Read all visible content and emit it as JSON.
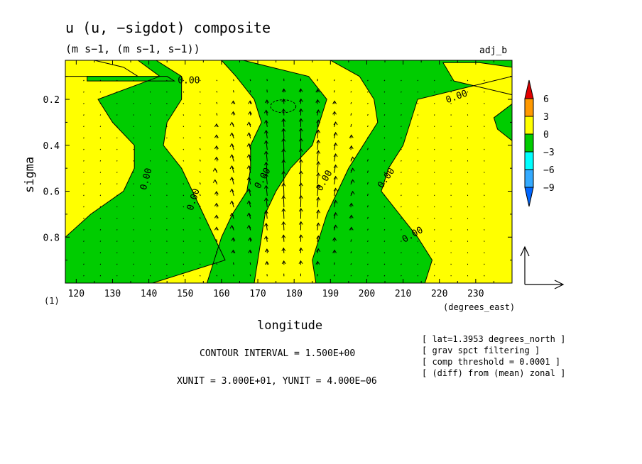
{
  "header": {
    "title": "u (u, −sigdot) composite",
    "units": "(m s−1, (m s−1, s−1))",
    "tag": "adj_b"
  },
  "footer": {
    "contour_interval": "CONTOUR INTERVAL = 1.500E+00",
    "vector_units": "XUNIT = 3.000E+01, YUNIT = 4.000E−06",
    "notes": [
      "[ lat=1.3953 degrees_north ]",
      "[ grav spct filtering ]",
      "[ comp threshold = 0.0001 ]",
      "[ (diff) from (mean) zonal ]"
    ],
    "panel_index": "(1)"
  },
  "colorbar": {
    "labels": [
      "6",
      "3",
      "0",
      "−3",
      "−6",
      "−9"
    ],
    "colors": {
      "over": "#e00000",
      "c3to6": "#ff9900",
      "c0to3": "#ffff00",
      "cm3to0": "#00cc00",
      "cm6tom3": "#00ffff",
      "cm9tom6": "#33aaff",
      "under": "#0066ff"
    }
  },
  "chart_data": {
    "type": "heatmap",
    "subtype": "filled contour with vector overlay",
    "title": "u (u, −sigdot) composite",
    "xlabel": "longitude",
    "xunits": "(degrees_east)",
    "ylabel": "sigma",
    "xlim": [
      117,
      240
    ],
    "ylim": [
      0.03,
      1.0
    ],
    "y_inverted": true,
    "xticks": [
      120,
      130,
      140,
      150,
      160,
      170,
      180,
      190,
      200,
      210,
      220,
      230
    ],
    "yticks": [
      0.2,
      0.4,
      0.6,
      0.8
    ],
    "contour_interval": 1.5,
    "contour_label": "0.00",
    "levels": [
      -9,
      -6,
      -3,
      0,
      3,
      6
    ],
    "zero_contour_bands": [
      {
        "sign": "positive",
        "sigma": [
          0.03,
          0.1,
          0.2,
          0.3,
          0.4,
          0.5,
          0.6,
          0.7,
          0.8,
          0.9,
          1.0
        ],
        "west": [
          117,
          117,
          117,
          117,
          117,
          117,
          117,
          117,
          117,
          117,
          117
        ],
        "east": [
          137,
          143,
          126,
          130,
          136,
          136,
          133,
          124,
          117,
          117,
          117
        ]
      },
      {
        "sign": "negative",
        "sigma": [
          0.03,
          0.1,
          0.2,
          0.3,
          0.4,
          0.5,
          0.6,
          0.7,
          0.8,
          0.9,
          1.0
        ],
        "west": [
          137,
          143,
          126,
          130,
          136,
          136,
          133,
          124,
          117,
          117,
          117
        ],
        "east": [
          142,
          149,
          149,
          145,
          144,
          149,
          152,
          155,
          158,
          161,
          141
        ]
      },
      {
        "sign": "positive",
        "sigma": [
          0.03,
          0.1,
          0.2,
          0.3,
          0.4,
          0.5,
          0.6,
          0.7,
          0.8,
          0.9,
          1.0
        ],
        "west": [
          142,
          149,
          149,
          145,
          144,
          149,
          152,
          155,
          158,
          161,
          141
        ],
        "east": [
          160,
          164,
          169,
          171,
          168,
          168,
          167,
          163,
          160,
          158,
          156
        ]
      },
      {
        "sign": "negative",
        "sigma": [
          0.03,
          0.1,
          0.2,
          0.3,
          0.4,
          0.5,
          0.6,
          0.7,
          0.8,
          0.9,
          1.0
        ],
        "west": [
          160,
          164,
          169,
          171,
          168,
          168,
          167,
          163,
          160,
          158,
          156
        ],
        "east": [
          166,
          184,
          189,
          187,
          185,
          179,
          175,
          172,
          171,
          170,
          169
        ]
      },
      {
        "sign": "positive",
        "sigma": [
          0.03,
          0.1,
          0.2,
          0.3,
          0.4,
          0.5,
          0.6,
          0.7,
          0.8,
          0.9,
          1.0
        ],
        "west": [
          166,
          184,
          189,
          187,
          185,
          179,
          175,
          172,
          171,
          170,
          169
        ],
        "east": [
          190,
          198,
          202,
          203,
          199,
          195,
          192,
          189,
          187,
          185,
          186
        ]
      },
      {
        "sign": "negative",
        "sigma": [
          0.03,
          0.1,
          0.2,
          0.3,
          0.4,
          0.5,
          0.6,
          0.7,
          0.8,
          0.9,
          1.0
        ],
        "west": [
          190,
          198,
          202,
          203,
          199,
          195,
          192,
          189,
          187,
          185,
          186
        ],
        "east": [
          240,
          240,
          214,
          212,
          210,
          206,
          204,
          209,
          214,
          218,
          216
        ]
      },
      {
        "sign": "positive",
        "sigma": [
          0.03,
          0.1,
          0.2,
          0.3,
          0.4,
          0.5,
          0.6,
          0.7,
          0.8,
          0.9,
          1.0
        ],
        "west": [
          240,
          240,
          214,
          212,
          210,
          206,
          204,
          209,
          214,
          218,
          216
        ],
        "east": [
          240,
          240,
          240,
          240,
          240,
          240,
          240,
          240,
          240,
          240,
          240
        ]
      }
    ],
    "extra_regions": [
      {
        "sign": "positive",
        "lon": [
          117,
          125,
          133,
          137,
          117
        ],
        "sigma": [
          0.03,
          0.03,
          0.06,
          0.1,
          0.1
        ]
      },
      {
        "sign": "negative",
        "lon": [
          123,
          145,
          147,
          123
        ],
        "sigma": [
          0.1,
          0.1,
          0.12,
          0.12
        ]
      },
      {
        "sign": "positive",
        "lon": [
          221,
          231,
          240,
          240,
          224
        ],
        "sigma": [
          0.04,
          0.04,
          0.06,
          0.18,
          0.12
        ]
      },
      {
        "sign": "negative",
        "lon": [
          235,
          240,
          240,
          236
        ],
        "sigma": [
          0.28,
          0.22,
          0.38,
          0.33
        ]
      }
    ],
    "dashed_contour": {
      "lon_center": 177,
      "sigma_center": 0.23,
      "lon_radius": 3.5,
      "sigma_radius": 0.028
    },
    "vectors": {
      "description": "u and −sigdot composite wind vectors; strong upward flow centered near 180 degrees_east, sigma 0.3–0.9",
      "x_unit": 30,
      "y_unit": 4e-06
    }
  }
}
